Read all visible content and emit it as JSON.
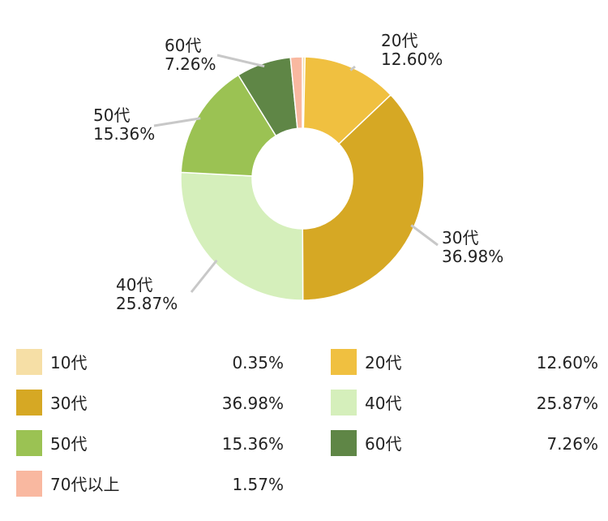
{
  "chart_data": {
    "type": "pie",
    "donut": true,
    "categories": [
      "10代",
      "20代",
      "30代",
      "40代",
      "50代",
      "60代",
      "70代以上"
    ],
    "values": [
      0.35,
      12.6,
      36.98,
      25.87,
      15.36,
      7.26,
      1.57
    ],
    "value_labels": [
      "0.35%",
      "12.60%",
      "36.98%",
      "25.87%",
      "15.36%",
      "7.26%",
      "1.57%"
    ],
    "colors": [
      "#f6dfa6",
      "#f0c040",
      "#d6a824",
      "#d5efbb",
      "#9bc253",
      "#5f8646",
      "#f9b8a0"
    ],
    "callout_labels": [
      {
        "index": 1,
        "name": "20代",
        "value": "12.60%"
      },
      {
        "index": 2,
        "name": "30代",
        "value": "36.98%"
      },
      {
        "index": 3,
        "name": "40代",
        "value": "25.87%"
      },
      {
        "index": 4,
        "name": "50代",
        "value": "15.36%"
      },
      {
        "index": 5,
        "name": "60代",
        "value": "7.26%"
      }
    ],
    "legend_placement": "bottom"
  }
}
